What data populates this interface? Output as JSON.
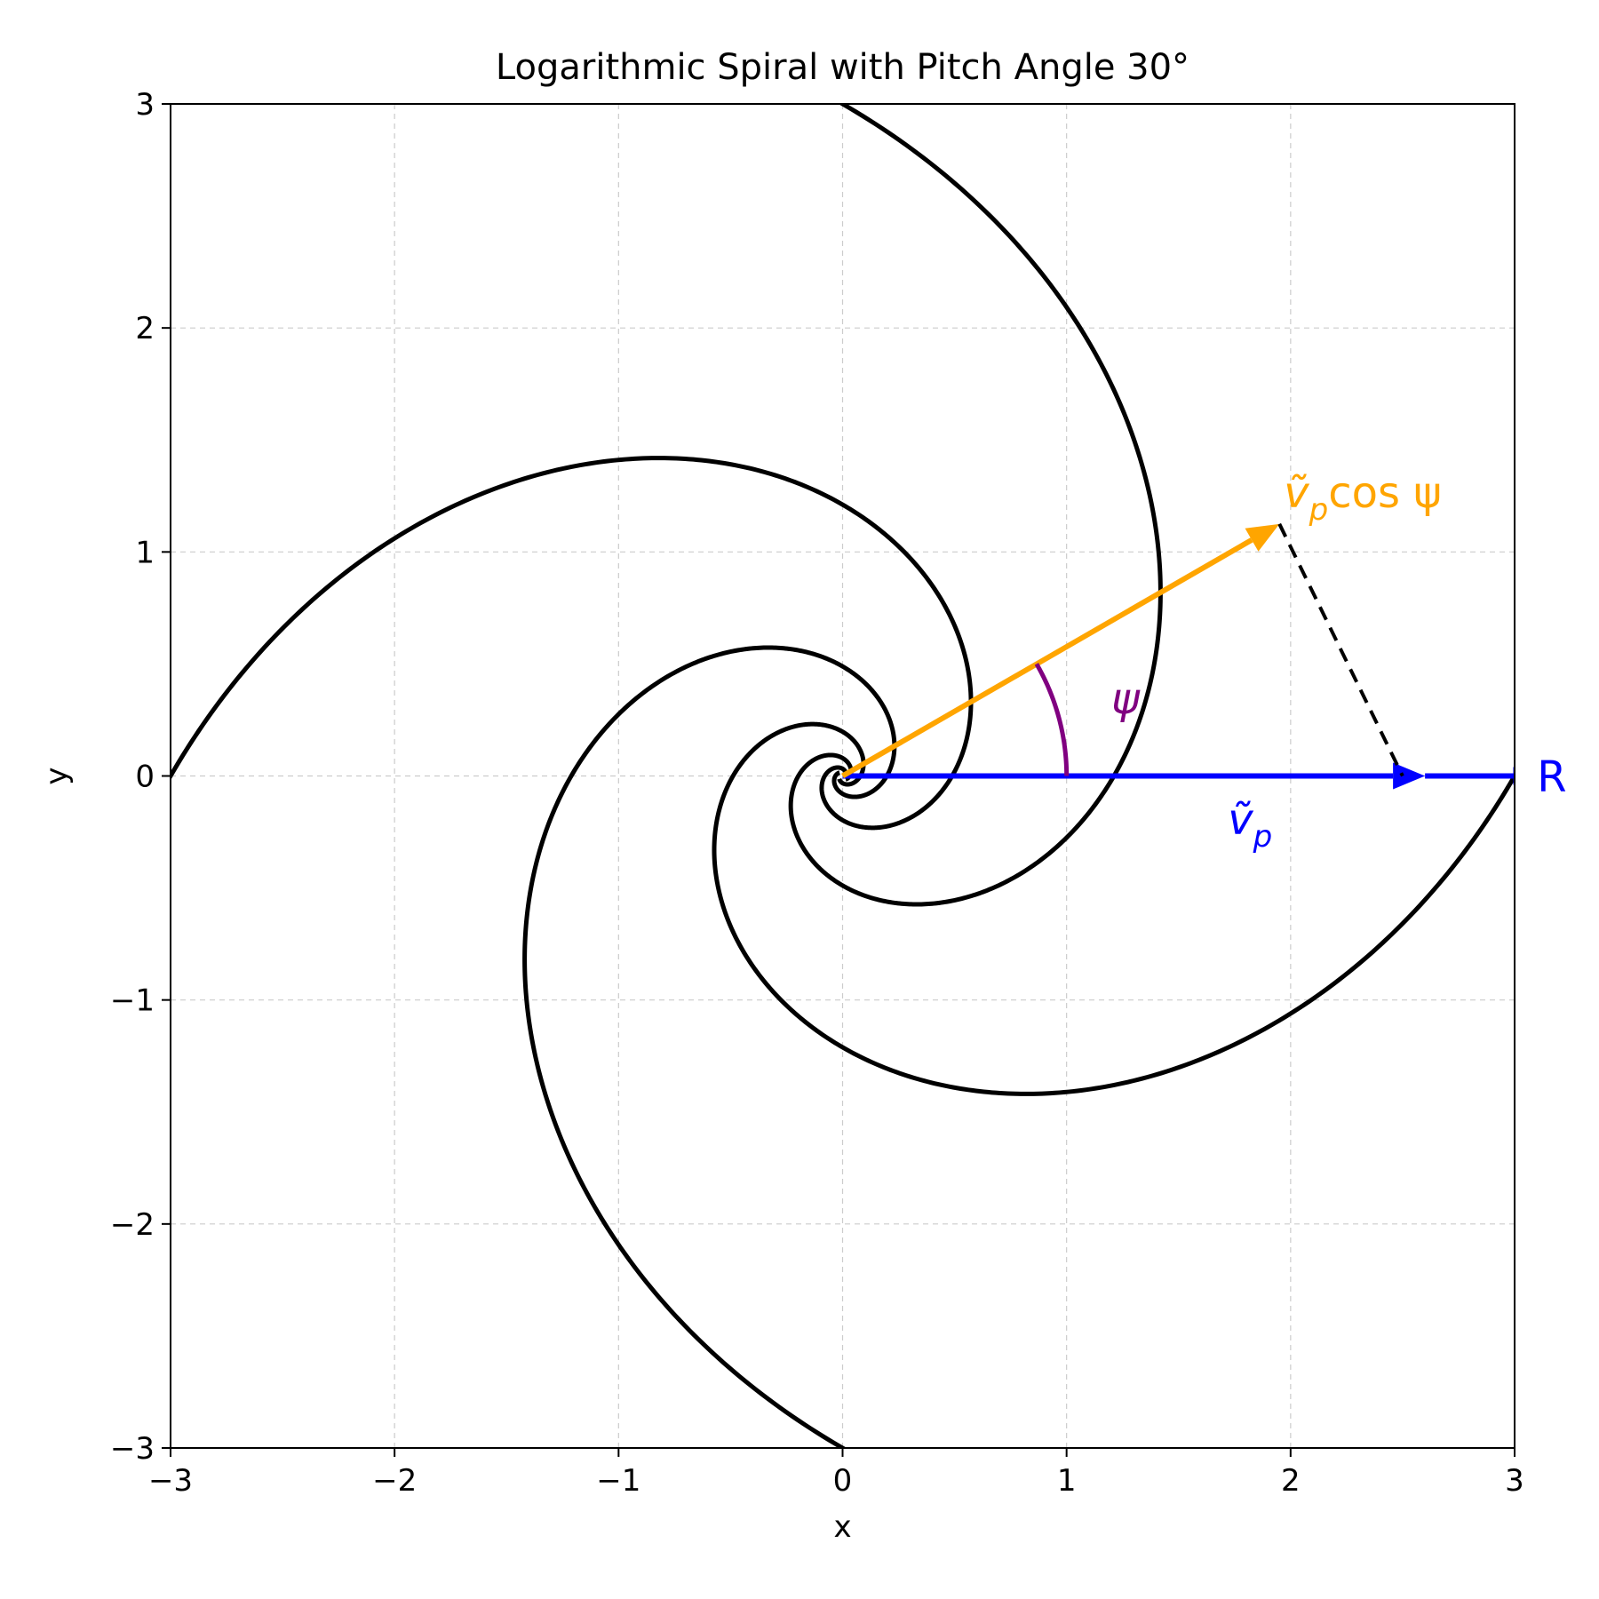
{
  "chart_data": {
    "type": "line",
    "title": "Logarithmic Spiral with Pitch Angle 30°",
    "xlabel": "x",
    "ylabel": "y",
    "xlim": [
      -3,
      3
    ],
    "ylim": [
      -3,
      3
    ],
    "xticks": [
      -3,
      -2,
      -1,
      0,
      1,
      2,
      3
    ],
    "yticks": [
      -3,
      -2,
      -1,
      0,
      1,
      2,
      3
    ],
    "xtick_labels": [
      "−3",
      "−2",
      "−1",
      "0",
      "1",
      "2",
      "3"
    ],
    "ytick_labels": [
      "−3",
      "−2",
      "−1",
      "0",
      "1",
      "2",
      "3"
    ],
    "grid": true,
    "spiral": {
      "pitch_angle_deg": 30,
      "arms": 4,
      "r_at_theta0": 3,
      "color": "#000000"
    },
    "vectors": [
      {
        "name": "v_p",
        "from": [
          0,
          0
        ],
        "to": [
          2.6,
          0
        ],
        "color": "#0000ff"
      },
      {
        "name": "v_p_cos_psi",
        "from": [
          0,
          0
        ],
        "to": [
          1.95,
          1.125
        ],
        "color": "#ffa500"
      }
    ],
    "projection_line": {
      "from": [
        1.95,
        1.125
      ],
      "to": [
        2.5,
        0
      ],
      "color": "#000000",
      "style": "dashed"
    },
    "angle_arc": {
      "radius": 1.0,
      "from_deg": 0,
      "to_deg": 30,
      "color": "#800080"
    },
    "r_line": {
      "from": [
        2.6,
        0
      ],
      "to": [
        3,
        0
      ],
      "color": "#0000ff"
    },
    "annotations": {
      "vp_label": "ṽ",
      "vp_sub": "p",
      "vpcos_label": "ṽ",
      "vpcos_sub": "p",
      "vpcos_tail": "cos ψ",
      "psi_label": "ψ",
      "r_label": "R"
    }
  }
}
